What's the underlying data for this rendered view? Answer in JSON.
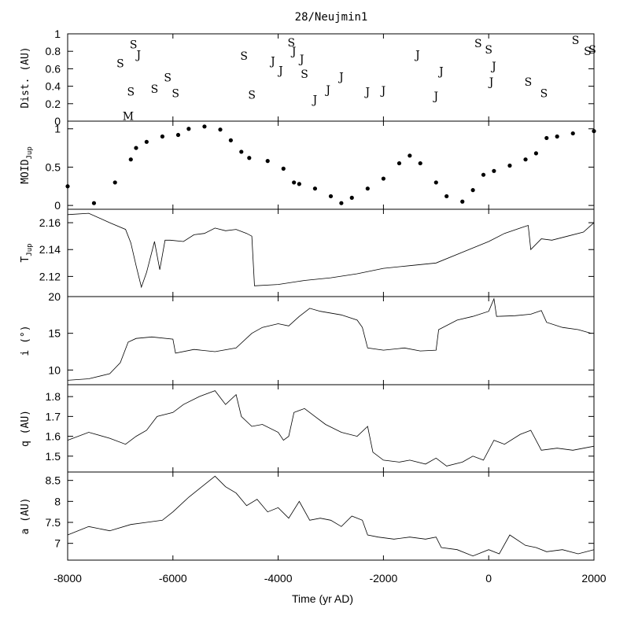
{
  "chart_data": {
    "type": "line",
    "title": "28/Neujmin1",
    "xlabel": "Time (yr AD)",
    "xlim": [
      -8000,
      2000
    ],
    "xticks": [
      -8000,
      -6000,
      -4000,
      -2000,
      0,
      2000
    ],
    "xtick_labels": [
      "-8000",
      "-6000",
      "-4000",
      "-2000",
      "0",
      "2000"
    ],
    "panels": [
      {
        "key": "dist",
        "type": "scatter-letters",
        "ylabel": "Dist. (AU)",
        "ylim": [
          0,
          1
        ],
        "yticks": [
          0,
          0.2,
          0.4,
          0.6,
          0.8,
          1
        ],
        "ytick_labels": [
          "0",
          "0.2",
          "0.4",
          "0.6",
          "0.8",
          "1"
        ],
        "events": [
          {
            "x": -6850,
            "y": 0.06,
            "label": "M"
          },
          {
            "x": -7000,
            "y": 0.66,
            "label": "S"
          },
          {
            "x": -6800,
            "y": 0.34,
            "label": "S"
          },
          {
            "x": -6750,
            "y": 0.88,
            "label": "S"
          },
          {
            "x": -6650,
            "y": 0.76,
            "label": "J"
          },
          {
            "x": -6350,
            "y": 0.37,
            "label": "S"
          },
          {
            "x": -6100,
            "y": 0.5,
            "label": "S"
          },
          {
            "x": -5950,
            "y": 0.32,
            "label": "S"
          },
          {
            "x": -4650,
            "y": 0.75,
            "label": "S"
          },
          {
            "x": -4500,
            "y": 0.3,
            "label": "S"
          },
          {
            "x": -4100,
            "y": 0.69,
            "label": "J"
          },
          {
            "x": -3950,
            "y": 0.58,
            "label": "J"
          },
          {
            "x": -3750,
            "y": 0.9,
            "label": "S"
          },
          {
            "x": -3700,
            "y": 0.8,
            "label": "J"
          },
          {
            "x": -3550,
            "y": 0.71,
            "label": "J"
          },
          {
            "x": -3500,
            "y": 0.54,
            "label": "S"
          },
          {
            "x": -3300,
            "y": 0.25,
            "label": "J"
          },
          {
            "x": -3050,
            "y": 0.36,
            "label": "J"
          },
          {
            "x": -2800,
            "y": 0.51,
            "label": "J"
          },
          {
            "x": -2300,
            "y": 0.34,
            "label": "J"
          },
          {
            "x": -2000,
            "y": 0.35,
            "label": "J"
          },
          {
            "x": -1350,
            "y": 0.76,
            "label": "J"
          },
          {
            "x": -1000,
            "y": 0.29,
            "label": "J"
          },
          {
            "x": -900,
            "y": 0.57,
            "label": "J"
          },
          {
            "x": -200,
            "y": 0.89,
            "label": "S"
          },
          {
            "x": 0,
            "y": 0.82,
            "label": "S"
          },
          {
            "x": 100,
            "y": 0.63,
            "label": "J"
          },
          {
            "x": 50,
            "y": 0.45,
            "label": "J"
          },
          {
            "x": 750,
            "y": 0.45,
            "label": "S"
          },
          {
            "x": 1050,
            "y": 0.32,
            "label": "S"
          },
          {
            "x": 1650,
            "y": 0.93,
            "label": "S"
          },
          {
            "x": 1880,
            "y": 0.8,
            "label": "S"
          },
          {
            "x": 1970,
            "y": 0.82,
            "label": "S"
          }
        ]
      },
      {
        "key": "moid",
        "type": "scatter",
        "ylabel": "MOID",
        "ylabel_sub": "Jup",
        "ylim": [
          -0.05,
          1.1
        ],
        "yticks": [
          0,
          0.5,
          1
        ],
        "ytick_labels": [
          "0",
          "0.5",
          "1"
        ],
        "x": [
          -8000,
          -7500,
          -7100,
          -6800,
          -6700,
          -6500,
          -6200,
          -5900,
          -5700,
          -5400,
          -5100,
          -4900,
          -4700,
          -4550,
          -4200,
          -3900,
          -3700,
          -3600,
          -3300,
          -3000,
          -2800,
          -2600,
          -2300,
          -2000,
          -1700,
          -1500,
          -1300,
          -1000,
          -800,
          -500,
          -300,
          -100,
          100,
          400,
          700,
          900,
          1100,
          1300,
          1600,
          2000
        ],
        "y": [
          0.25,
          0.03,
          0.3,
          0.6,
          0.75,
          0.83,
          0.9,
          0.92,
          1.0,
          1.03,
          0.99,
          0.85,
          0.7,
          0.62,
          0.58,
          0.48,
          0.3,
          0.28,
          0.22,
          0.12,
          0.03,
          0.1,
          0.22,
          0.35,
          0.55,
          0.65,
          0.55,
          0.3,
          0.12,
          0.05,
          0.2,
          0.4,
          0.45,
          0.52,
          0.6,
          0.68,
          0.88,
          0.9,
          0.94,
          0.97
        ]
      },
      {
        "key": "tjup",
        "type": "line",
        "ylabel": "T",
        "ylabel_sub": "Jup",
        "ylim": [
          2.105,
          2.17
        ],
        "yticks": [
          2.12,
          2.14,
          2.16
        ],
        "ytick_labels": [
          "2.12",
          "2.14",
          "2.16"
        ],
        "x": [
          -8000,
          -7600,
          -7200,
          -6900,
          -6800,
          -6700,
          -6600,
          -6500,
          -6350,
          -6250,
          -6150,
          -6050,
          -5800,
          -5600,
          -5400,
          -5200,
          -5000,
          -4800,
          -4600,
          -4500,
          -4450,
          -4000,
          -3500,
          -3000,
          -2500,
          -2000,
          -1500,
          -1000,
          -500,
          0,
          300,
          600,
          750,
          800,
          1000,
          1200,
          1500,
          1800,
          2000
        ],
        "y": [
          2.166,
          2.167,
          2.16,
          2.155,
          2.145,
          2.128,
          2.112,
          2.123,
          2.146,
          2.125,
          2.147,
          2.147,
          2.146,
          2.151,
          2.152,
          2.156,
          2.154,
          2.155,
          2.152,
          2.15,
          2.113,
          2.114,
          2.117,
          2.119,
          2.122,
          2.126,
          2.128,
          2.13,
          2.138,
          2.146,
          2.152,
          2.156,
          2.158,
          2.14,
          2.148,
          2.147,
          2.15,
          2.153,
          2.16
        ]
      },
      {
        "key": "incl",
        "type": "line",
        "ylabel": "i (°)",
        "ylim": [
          8,
          20
        ],
        "yticks": [
          10,
          15,
          20
        ],
        "ytick_labels": [
          "10",
          "15",
          "20"
        ],
        "x": [
          -8000,
          -7600,
          -7200,
          -7000,
          -6850,
          -6700,
          -6400,
          -6000,
          -5950,
          -5600,
          -5200,
          -4800,
          -4500,
          -4300,
          -4000,
          -3800,
          -3600,
          -3400,
          -3200,
          -2800,
          -2500,
          -2400,
          -2300,
          -2000,
          -1600,
          -1300,
          -1000,
          -950,
          -600,
          -300,
          0,
          100,
          150,
          500,
          800,
          1000,
          1100,
          1400,
          1700,
          1950
        ],
        "y": [
          8.6,
          8.8,
          9.5,
          11,
          13.8,
          14.3,
          14.5,
          14.2,
          12.3,
          12.8,
          12.5,
          13.0,
          15.0,
          15.8,
          16.3,
          16.0,
          17.3,
          18.4,
          18.0,
          17.5,
          16.8,
          15.8,
          13.0,
          12.7,
          13.0,
          12.6,
          12.7,
          15.5,
          16.8,
          17.3,
          18.0,
          19.7,
          17.3,
          17.4,
          17.6,
          18.1,
          16.5,
          15.8,
          15.5,
          15.0
        ]
      },
      {
        "key": "q",
        "type": "line",
        "ylabel": "q (AU)",
        "ylim": [
          1.42,
          1.86
        ],
        "yticks": [
          1.5,
          1.6,
          1.7,
          1.8
        ],
        "ytick_labels": [
          "1.5",
          "1.6",
          "1.7",
          "1.8"
        ],
        "x": [
          -8000,
          -7600,
          -7200,
          -6900,
          -6700,
          -6500,
          -6300,
          -6000,
          -5800,
          -5500,
          -5200,
          -5000,
          -4800,
          -4700,
          -4500,
          -4300,
          -4000,
          -3900,
          -3800,
          -3700,
          -3500,
          -3300,
          -3100,
          -2800,
          -2500,
          -2300,
          -2200,
          -2000,
          -1700,
          -1500,
          -1200,
          -1000,
          -800,
          -500,
          -300,
          -100,
          100,
          300,
          600,
          800,
          1000,
          1300,
          1600,
          2000
        ],
        "y": [
          1.58,
          1.62,
          1.59,
          1.56,
          1.6,
          1.63,
          1.7,
          1.72,
          1.76,
          1.8,
          1.83,
          1.76,
          1.81,
          1.7,
          1.65,
          1.66,
          1.62,
          1.58,
          1.6,
          1.72,
          1.74,
          1.7,
          1.66,
          1.62,
          1.6,
          1.65,
          1.52,
          1.48,
          1.47,
          1.48,
          1.46,
          1.49,
          1.45,
          1.47,
          1.5,
          1.48,
          1.58,
          1.56,
          1.61,
          1.63,
          1.53,
          1.54,
          1.53,
          1.55
        ]
      },
      {
        "key": "a",
        "type": "line",
        "ylabel": "a (AU)",
        "ylim": [
          6.6,
          8.7
        ],
        "yticks": [
          7,
          7.5,
          8,
          8.5
        ],
        "ytick_labels": [
          "7",
          "7.5",
          "8",
          "8.5"
        ],
        "x": [
          -8000,
          -7600,
          -7200,
          -6800,
          -6500,
          -6200,
          -6000,
          -5700,
          -5500,
          -5200,
          -5000,
          -4800,
          -4600,
          -4400,
          -4200,
          -4000,
          -3800,
          -3600,
          -3400,
          -3200,
          -3000,
          -2800,
          -2600,
          -2400,
          -2300,
          -2100,
          -1800,
          -1500,
          -1200,
          -1000,
          -900,
          -600,
          -300,
          0,
          200,
          400,
          700,
          900,
          1100,
          1400,
          1700,
          2000
        ],
        "y": [
          7.2,
          7.4,
          7.3,
          7.45,
          7.5,
          7.55,
          7.75,
          8.1,
          8.3,
          8.6,
          8.35,
          8.2,
          7.9,
          8.05,
          7.75,
          7.85,
          7.6,
          8.0,
          7.55,
          7.6,
          7.55,
          7.4,
          7.65,
          7.55,
          7.2,
          7.15,
          7.1,
          7.15,
          7.1,
          7.15,
          6.9,
          6.85,
          6.7,
          6.85,
          6.75,
          7.2,
          6.95,
          6.9,
          6.8,
          6.85,
          6.75,
          6.85
        ]
      }
    ]
  }
}
